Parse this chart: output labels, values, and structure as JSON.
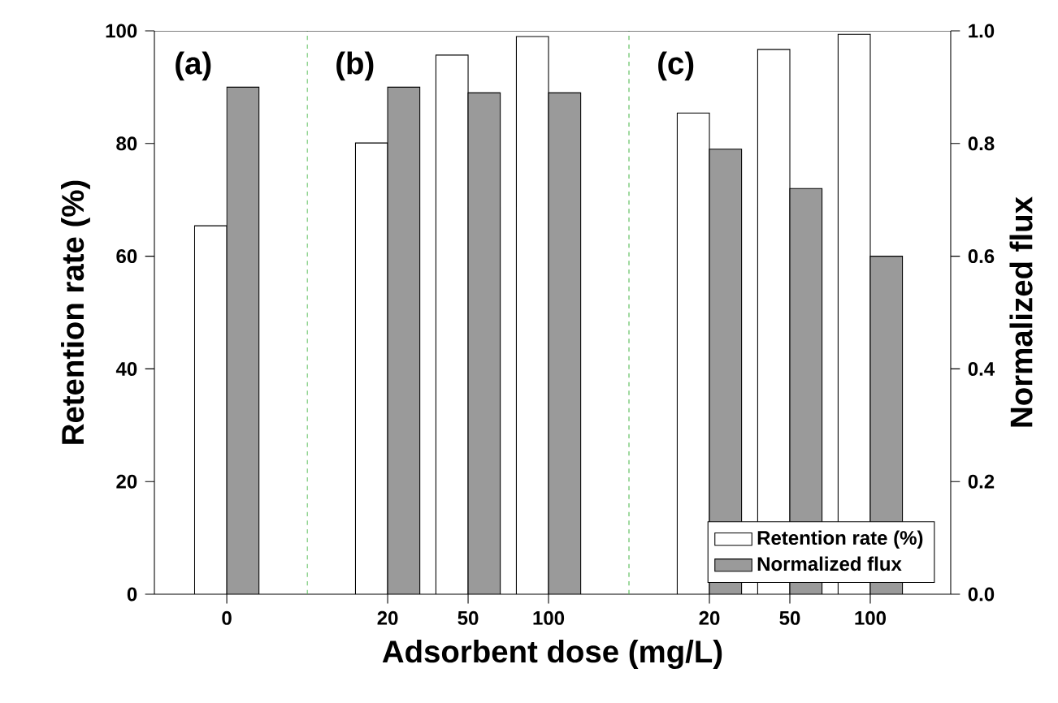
{
  "chart_data": {
    "type": "bar",
    "xlabel": "Adsorbent dose (mg/L)",
    "ylabel": "Retention rate (%)",
    "y2label": "Normalized flux",
    "categories": [
      "0",
      null,
      "20",
      "50",
      "100",
      null,
      "20",
      "50",
      "100"
    ],
    "series": [
      {
        "name": "Retention rate (%)",
        "color": "#ffffff",
        "values": [
          65.4,
          null,
          80.1,
          95.7,
          99.0,
          null,
          85.4,
          96.7,
          99.4
        ]
      },
      {
        "name": "Normalized flux",
        "color": "#9a9a9a",
        "axis": "y2",
        "values": [
          0.9,
          null,
          0.9,
          0.89,
          0.89,
          null,
          0.79,
          0.72,
          0.6
        ]
      }
    ],
    "ylim": [
      0,
      100
    ],
    "yticks": [
      0,
      20,
      40,
      60,
      80,
      100
    ],
    "y2lim": [
      0,
      1
    ],
    "y2ticks": [
      {
        "value": 0,
        "label": "0.0"
      },
      {
        "value": 0.2,
        "label": "0.2"
      },
      {
        "value": 0.4,
        "label": "0.4"
      },
      {
        "value": 0.6,
        "label": "0.6"
      },
      {
        "value": 0.8,
        "label": "0.8"
      },
      {
        "value": 1,
        "label": "1.0"
      }
    ],
    "annotations": [
      "(a)",
      "(b)",
      "(c)"
    ],
    "legend": "bottom right"
  }
}
